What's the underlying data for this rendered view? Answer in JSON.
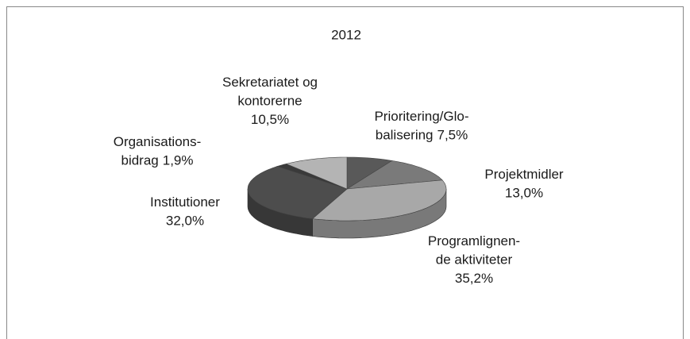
{
  "chart_data": {
    "type": "pie",
    "title": "2012",
    "categories": [
      [
        "Prioritering/Glo-",
        "balisering"
      ],
      [
        "Projektmidler"
      ],
      [
        "Programlignen-",
        "de aktiviteter"
      ],
      [
        "Institutioner"
      ],
      [
        "Organisations-",
        "bidrag"
      ],
      [
        "Sekretariatet og",
        "kontorerne"
      ]
    ],
    "values": [
      7.5,
      13.0,
      35.2,
      32.0,
      1.9,
      10.5
    ],
    "value_labels": [
      "7,5%",
      "13,0%",
      "35,2%",
      "32,0%",
      "1,9%",
      "10,5%"
    ],
    "colors": [
      "#595959",
      "#7a7a7a",
      "#a8a8a8",
      "#4d4d4d",
      "#3a3a3a",
      "#b4b4b4"
    ]
  }
}
